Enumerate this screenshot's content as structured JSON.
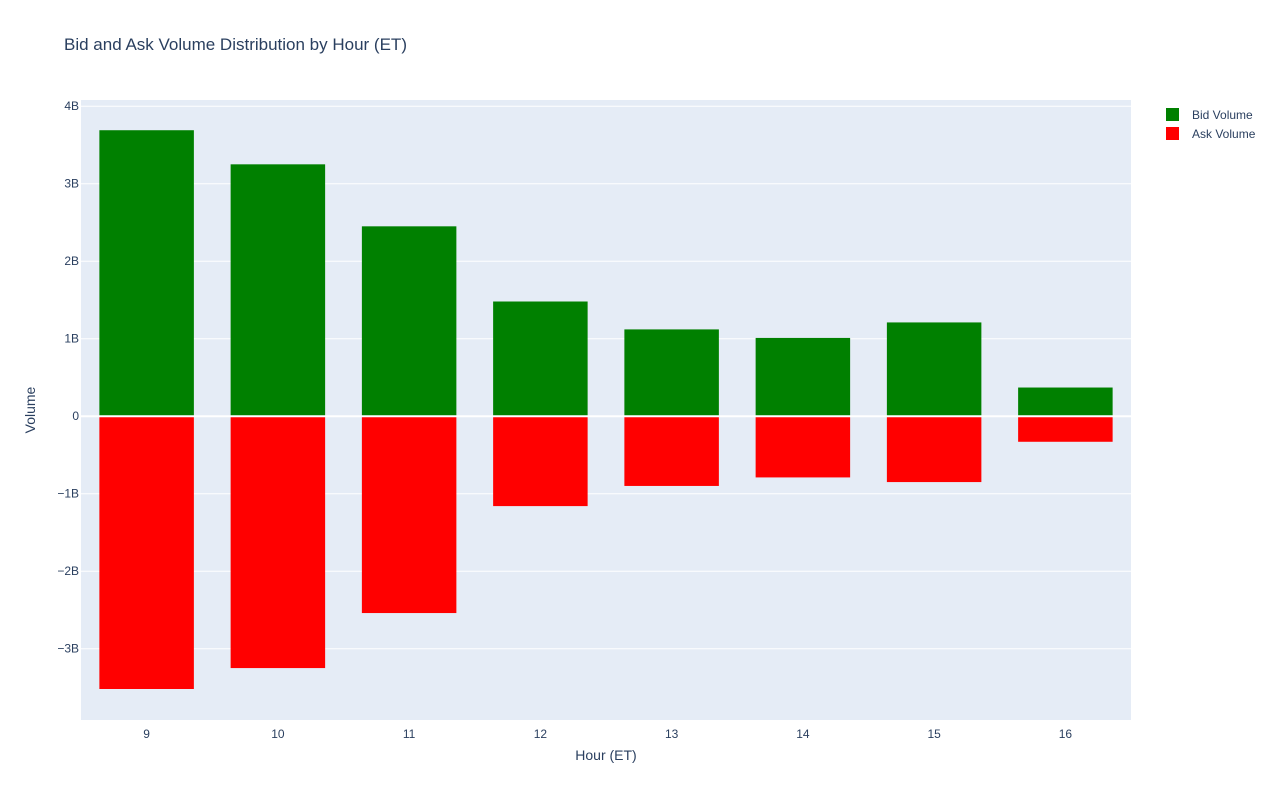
{
  "chart_data": {
    "type": "bar",
    "title": "Bid and Ask Volume Distribution by Hour (ET)",
    "xlabel": "Hour (ET)",
    "ylabel": "Volume",
    "categories": [
      "9",
      "10",
      "11",
      "12",
      "13",
      "14",
      "15",
      "16"
    ],
    "series": [
      {
        "name": "Bid Volume",
        "color": "#008000",
        "values": [
          3690000000,
          3250000000,
          2450000000,
          1480000000,
          1120000000,
          1010000000,
          1210000000,
          370000000
        ]
      },
      {
        "name": "Ask Volume",
        "color": "#ff0000",
        "values": [
          -3520000000,
          -3250000000,
          -2540000000,
          -1160000000,
          -900000000,
          -790000000,
          -850000000,
          -330000000
        ]
      }
    ],
    "barmode": "relative",
    "ylim": [
      -3920000000,
      4080000000
    ],
    "yticks": [
      -3000000000,
      -2000000000,
      -1000000000,
      0,
      1000000000,
      2000000000,
      3000000000,
      4000000000
    ],
    "ytick_labels": [
      "−3B",
      "−2B",
      "−1B",
      "0",
      "1B",
      "2B",
      "3B",
      "4B"
    ],
    "grid": true,
    "legend_position": "top-right",
    "plot_background": "#e5ecf6"
  }
}
